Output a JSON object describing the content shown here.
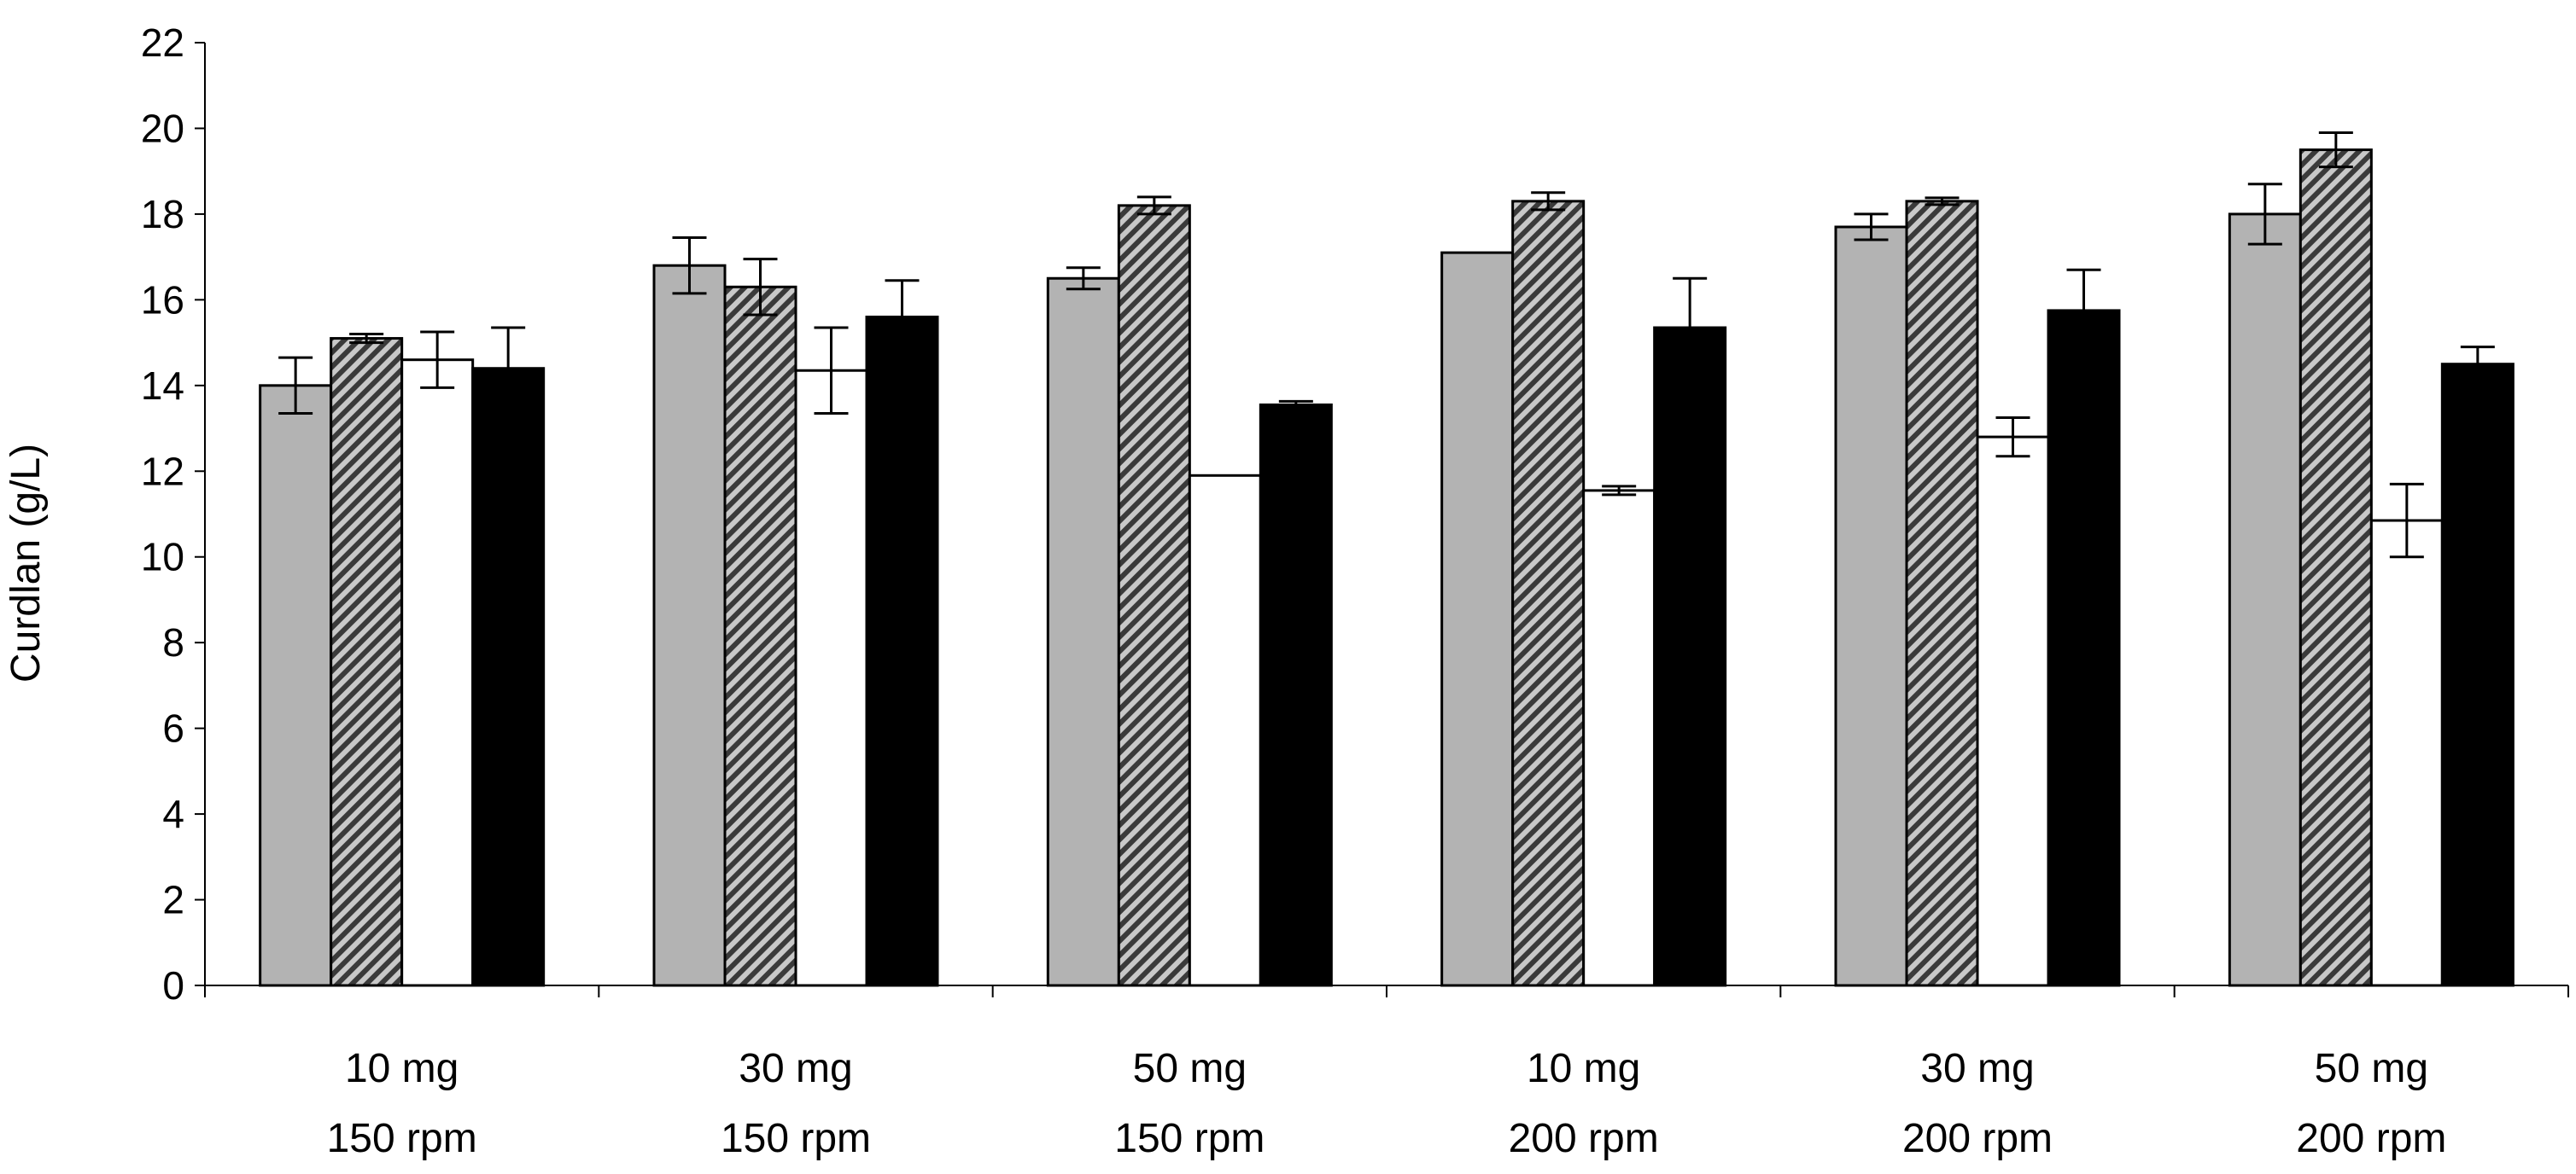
{
  "chart_data": {
    "type": "bar",
    "title": "",
    "xlabel": "",
    "ylabel": "Curdlan (g/L)",
    "ylim": [
      0,
      22
    ],
    "yticks": [
      0,
      2,
      4,
      6,
      8,
      10,
      12,
      14,
      16,
      18,
      20,
      22
    ],
    "ytick_labels": [
      "0",
      "2",
      "4",
      "6",
      "8",
      "10",
      "12",
      "14",
      "16",
      "18",
      "20",
      "22"
    ],
    "grid": false,
    "legend": "none",
    "categories": [
      {
        "line1": "10 mg",
        "line2": "150 rpm"
      },
      {
        "line1": "30 mg",
        "line2": "150 rpm"
      },
      {
        "line1": "50 mg",
        "line2": "150 rpm"
      },
      {
        "line1": "10 mg",
        "line2": "200 rpm"
      },
      {
        "line1": "30 mg",
        "line2": "200 rpm"
      },
      {
        "line1": "50 mg",
        "line2": "200 rpm"
      }
    ],
    "series": [
      {
        "name": "series-1",
        "fill": "gray",
        "color": "#b3b3b3",
        "values": [
          14.0,
          16.8,
          16.5,
          17.1,
          17.7,
          18.0
        ],
        "errors": [
          0.65,
          0.65,
          0.25,
          0.0,
          0.3,
          0.7
        ]
      },
      {
        "name": "series-2",
        "fill": "hatched",
        "color": "#4d4d4d",
        "values": [
          15.1,
          16.3,
          18.2,
          18.3,
          18.3,
          19.5
        ],
        "errors": [
          0.1,
          0.65,
          0.2,
          0.2,
          0.08,
          0.4
        ]
      },
      {
        "name": "series-3",
        "fill": "white",
        "color": "#ffffff",
        "values": [
          14.6,
          14.35,
          11.9,
          11.55,
          12.8,
          10.85
        ],
        "errors": [
          0.65,
          1.0,
          0.0,
          0.1,
          0.45,
          0.85
        ]
      },
      {
        "name": "series-4",
        "fill": "black",
        "color": "#000000",
        "values": [
          14.4,
          15.6,
          13.55,
          15.35,
          15.75,
          14.5
        ],
        "errors": [
          0.95,
          0.85,
          0.08,
          1.15,
          0.95,
          0.4
        ]
      }
    ]
  }
}
